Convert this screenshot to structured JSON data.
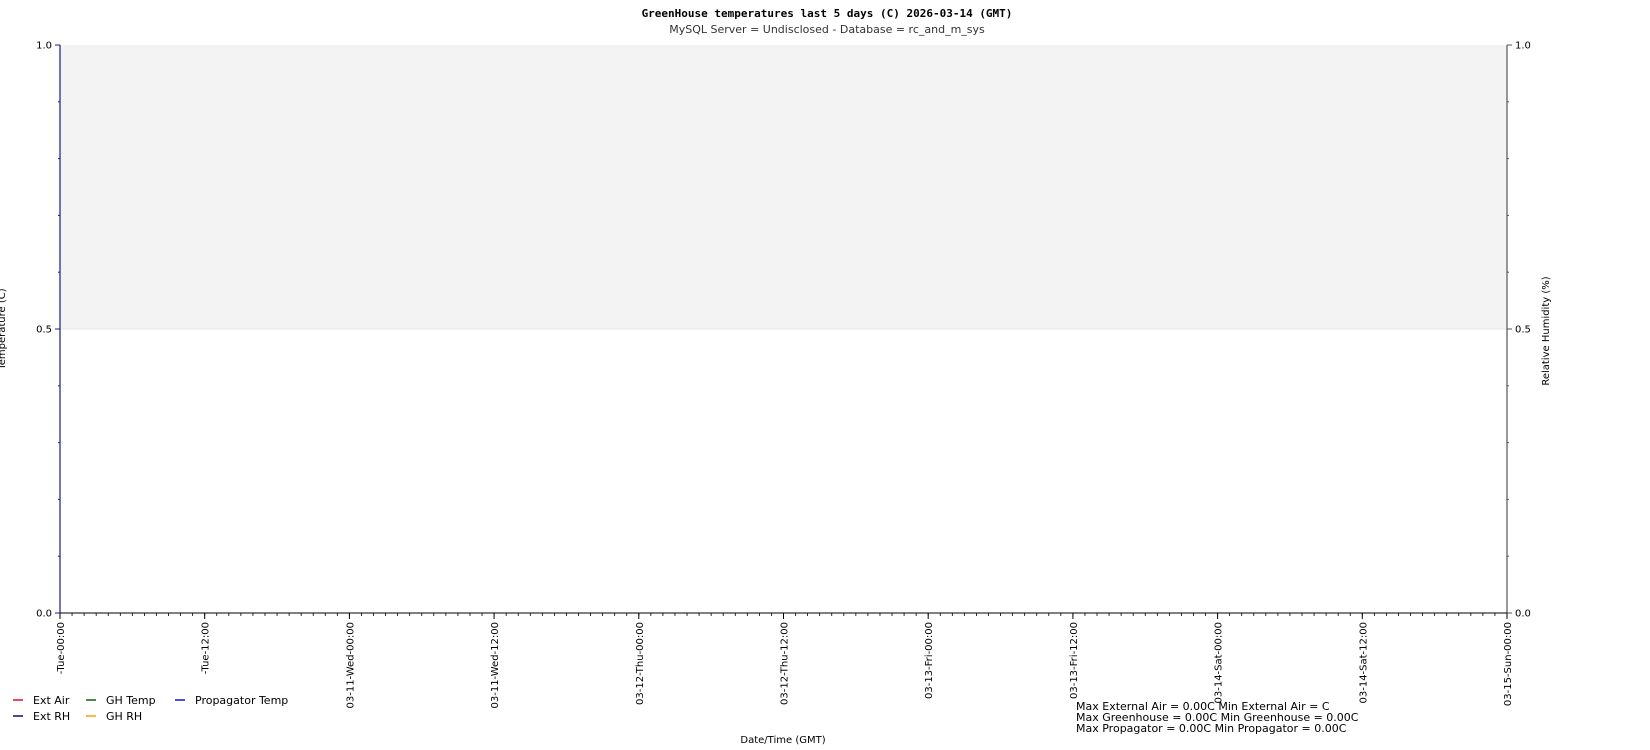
{
  "chart_data": {
    "type": "line",
    "title": "GreenHouse temperatures last 5     days (C) 2026-03-14 (GMT)",
    "subtitle": "MySQL Server = Undisclosed - Database = rc_and_m_sys",
    "xlabel": "Date/Time (GMT)",
    "ylabel_left": "Temperature (C)",
    "ylabel_right": "Relative Humidity (%)",
    "ylim_left": [
      0,
      1.0
    ],
    "ylim_right": [
      0,
      1.0
    ],
    "yticks_left": [
      "0.0",
      "0.5",
      "1.0"
    ],
    "yticks_right": [
      "0.0",
      "0.5",
      "1.0"
    ],
    "x_tick_labels": [
      "-Tue-00:00",
      "-Tue-12:00",
      "03-11-Wed-00:00",
      "03-11-Wed-12:00",
      "03-12-Thu-00:00",
      "03-12-Thu-12:00",
      "03-13-Fri-00:00",
      "03-13-Fri-12:00",
      "03-14-Sat-00:00",
      "03-14-Sat-12:00",
      "03-15-Sun-00:00"
    ],
    "band_color": "#f3f3f3",
    "grid": false,
    "legend_position": "bottom-left",
    "series": [
      {
        "name": "Ext Air",
        "color": "#e8202a",
        "values": []
      },
      {
        "name": "Ext RH",
        "color": "#1a1a8c",
        "values": []
      },
      {
        "name": "GH Temp",
        "color": "#1e6b1e",
        "values": []
      },
      {
        "name": "GH RH",
        "color": "#f5a623",
        "values": []
      },
      {
        "name": "Propagator Temp",
        "color": "#2222cc",
        "values": []
      }
    ],
    "stats": [
      "Max External Air = 0.00C Min External Air = C",
      "Max Greenhouse = 0.00C Min Greenhouse = 0.00C",
      "Max Propagator = 0.00C Min Propagator = 0.00C"
    ]
  }
}
